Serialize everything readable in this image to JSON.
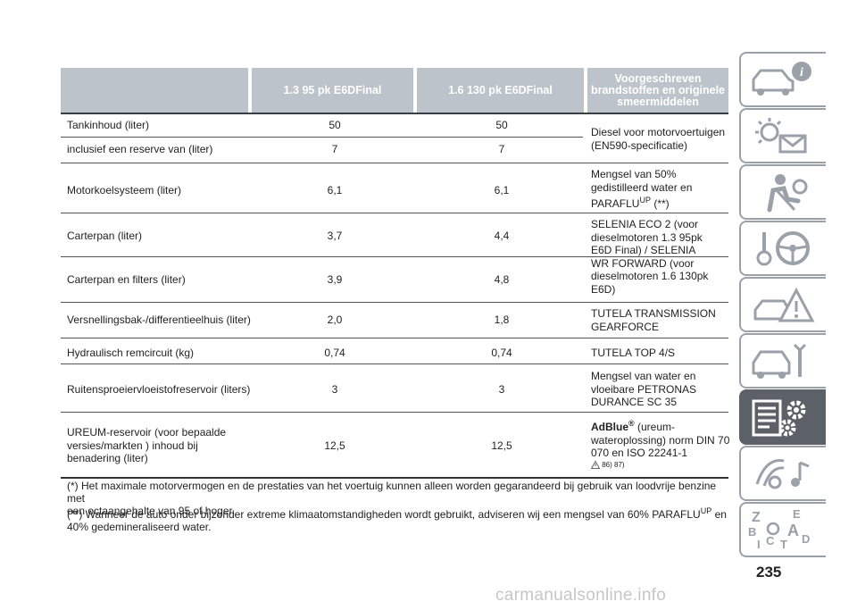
{
  "table": {
    "headers": {
      "col1": "1.3 95 pk E6DFinal",
      "col2": "1.6 130 pk E6DFinal",
      "col3_lines": [
        "Voorgeschreven",
        "brandstoffen en originele",
        "smeermiddelen"
      ]
    },
    "rows": [
      {
        "label": [
          "Tankinhoud (liter)"
        ],
        "v1": "50",
        "v2": "50"
      },
      {
        "label": [
          "inclusief een reserve van (liter)"
        ],
        "v1": "7",
        "v2": "7"
      },
      {
        "label": [
          "Motorkoelsysteem (liter)"
        ],
        "v1": "6,1",
        "v2": "6,1"
      },
      {
        "label": [
          "Carterpan (liter)"
        ],
        "v1": "3,7",
        "v2": "4,4"
      },
      {
        "label": [
          "Carterpan en filters (liter)"
        ],
        "v1": "3,9",
        "v2": "4,8"
      },
      {
        "label": [
          "Versnellingsbak-/differentieelhuis (liter)"
        ],
        "v1": "2,0",
        "v2": "1,8"
      },
      {
        "label": [
          "Hydraulisch remcircuit (kg)"
        ],
        "v1": "0,74",
        "v2": "0,74"
      },
      {
        "label": [
          "Ruitensproeiervloeistofreservoir (liters)"
        ],
        "v1": "3",
        "v2": "3"
      },
      {
        "label": [
          "UREUM-reservoir (voor bepaalde",
          "versies/markten ) inhoud bij",
          "benadering (liter)"
        ],
        "v1": "12,5",
        "v2": "12,5"
      }
    ],
    "specs": {
      "diesel": [
        "Diesel voor motorvoertuigen",
        "(EN590-specificatie)"
      ],
      "coolant_lines": [
        "Mengsel van 50%",
        "gedistilleerd water en"
      ],
      "coolant_brand": "PARAFLU",
      "coolant_sup": "UP",
      "coolant_note": "(**)",
      "oil": [
        "SELENIA ECO 2 (voor",
        "dieselmotoren 1.3 95pk",
        "E6D Final) / SELENIA",
        "WR FORWARD (voor",
        "dieselmotoren 1.6 130pk",
        "E6D)"
      ],
      "gearbox": [
        "TUTELA TRANSMISSION",
        "GEARFORCE"
      ],
      "brake": [
        "TUTELA TOP 4/S"
      ],
      "washer": [
        "Mengsel van water en",
        "vloeibare PETRONAS",
        "DURANCE SC 35"
      ],
      "adblue_name": "AdBlue",
      "adblue_reg": "®",
      "adblue_after": "(ureum-",
      "adblue_lines": [
        "wateroplossing) norm DIN 70",
        "070 en ISO 22241-1"
      ],
      "adblue_refs": "86) 87)"
    }
  },
  "footnotes": {
    "f1_lines": [
      "(*) Het maximale motorvermogen en de prestaties van het voertuig kunnen alleen worden gegarandeerd bij gebruik van loodvrije benzine met",
      "een octaangehalte van 95 of hoger."
    ],
    "f2_start": "(**) Wanneer de auto onder bijzonder extreme klimaatomstandigheden wordt gebruikt, adviseren wij een mengsel van 60% PARAFLU",
    "f2_sup": "UP",
    "f2_end": " en",
    "f2_line2": "40% gedemineraliseerd water."
  },
  "sidebar": {
    "tabs": [
      {
        "icon": "car-info-icon"
      },
      {
        "icon": "dashboard-lights-icon"
      },
      {
        "icon": "seat-airbag-icon"
      },
      {
        "icon": "key-steering-wheel-icon"
      },
      {
        "icon": "warning-triangle-car-icon"
      },
      {
        "icon": "car-wrench-icon"
      },
      {
        "icon": "spec-list-gear-icon"
      },
      {
        "icon": "multimedia-icon"
      },
      {
        "icon": "index-letters-icon"
      }
    ],
    "index_letters": [
      "Z",
      "E",
      "B",
      "A",
      "I",
      "C",
      "T",
      "D"
    ],
    "active_index": 6
  },
  "page_number": "235",
  "watermark": "carmanualsonline.info",
  "colors": {
    "header_bg": "#bcc3ca",
    "active_tab": "#5c6167",
    "icon_gray": "#9aa1a8"
  }
}
